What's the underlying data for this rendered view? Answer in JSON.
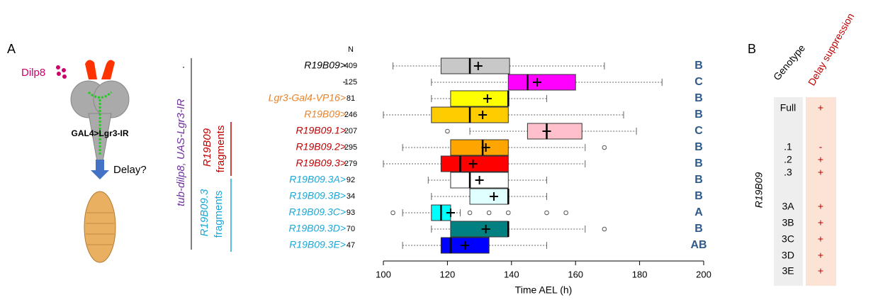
{
  "panel_a": {
    "label": "A",
    "illustration": {
      "ligand": "Dilp8",
      "driver": "GAL4>Lgr3-IR",
      "question": "Delay?"
    },
    "groups": {
      "background": "tub-dilp8, UAS-Lgr3-IR",
      "fragments_line1": "R19B09",
      "fragments_line2": "fragments",
      "sub_line1": "R19B09.3",
      "sub_line2": "fragments"
    }
  },
  "chart_data": {
    "type": "boxplot",
    "xlabel": "Time AEL (h)",
    "n_header": "N",
    "xlim": [
      100,
      200
    ],
    "xticks": [
      100,
      120,
      140,
      160,
      180,
      200
    ],
    "categories": [
      "R19B09>",
      "-",
      "Lgr3-Gal4-VP16>",
      "R19B09>",
      "R19B09.1>",
      "R19B09.2>",
      "R19B09.3>",
      "R19B09.3A>",
      "R19B09.3B>",
      "R19B09.3C>",
      "R19B09.3D>",
      "R19B09.3E>"
    ],
    "label_colors": [
      "#000000",
      "#000000",
      "#e8822a",
      "#e8822a",
      "#c00000",
      "#c00000",
      "#c00000",
      "#1aa7d8",
      "#1aa7d8",
      "#1aa7d8",
      "#1aa7d8",
      "#1aa7d8"
    ],
    "n": [
      409,
      125,
      81,
      246,
      207,
      295,
      279,
      92,
      34,
      93,
      70,
      47
    ],
    "letters": [
      "B",
      "C",
      "B",
      "B",
      "C",
      "B",
      "B",
      "B",
      "B",
      "A",
      "B",
      "AB"
    ],
    "boxes": [
      {
        "color": "#c8c8c8",
        "whislo": 103,
        "q1": 118,
        "med": 127,
        "mean": 129.6,
        "q3": 139.4,
        "whishi": 169,
        "fliers": []
      },
      {
        "color": "#ff00ff",
        "whislo": 115,
        "q1": 139,
        "med": 145,
        "mean": 148,
        "q3": 160,
        "whishi": 187,
        "fliers": []
      },
      {
        "color": "#ffff00",
        "whislo": 115,
        "q1": 121,
        "med": 139,
        "mean": 132.5,
        "q3": 139,
        "whishi": 151,
        "fliers": []
      },
      {
        "color": "#ffcc00",
        "whislo": 100,
        "q1": 115,
        "med": 127,
        "mean": 131,
        "q3": 139,
        "whishi": 175,
        "fliers": []
      },
      {
        "color": "#ffc0cb",
        "whislo": 127,
        "q1": 145,
        "med": 151,
        "mean": 151,
        "q3": 162,
        "whishi": 179,
        "fliers": [
          120
        ]
      },
      {
        "color": "#ffa500",
        "whislo": 106,
        "q1": 121,
        "med": 131,
        "mean": 132,
        "q3": 139,
        "whishi": 163,
        "fliers": [
          169
        ]
      },
      {
        "color": "#ff0000",
        "whislo": 100,
        "q1": 118,
        "med": 124,
        "mean": 128,
        "q3": 139,
        "whishi": 163,
        "fliers": []
      },
      {
        "color": "#ffffff",
        "whislo": 114,
        "q1": 121,
        "med": 127,
        "mean": 130,
        "q3": 139,
        "whishi": 151,
        "fliers": []
      },
      {
        "color": "#e0ffff",
        "whislo": 115,
        "q1": 127,
        "med": 139,
        "mean": 134.5,
        "q3": 139,
        "whishi": 151,
        "fliers": []
      },
      {
        "color": "#00ffff",
        "whislo": 106,
        "q1": 115,
        "med": 118,
        "mean": 121,
        "q3": 121,
        "whishi": 124,
        "fliers": [
          103,
          127,
          133,
          139,
          151,
          157
        ]
      },
      {
        "color": "#008080",
        "whislo": 115,
        "q1": 121,
        "med": 139,
        "mean": 132,
        "q3": 139,
        "whishi": 163,
        "fliers": [
          169
        ]
      },
      {
        "color": "#0000ff",
        "whislo": 106,
        "q1": 118,
        "med": 121,
        "mean": 125.5,
        "q3": 133,
        "whishi": 151,
        "fliers": []
      }
    ]
  },
  "panel_b": {
    "label": "B",
    "header_genotype": "Genotype",
    "header_suppression": "Delay suppression",
    "group_label": "R19B09",
    "rows": [
      [
        "Full",
        "+"
      ],
      [
        ".1",
        "-"
      ],
      [
        ".2",
        "+"
      ],
      [
        ".3",
        "+"
      ],
      [
        "3A",
        "+"
      ],
      [
        "3B",
        "+"
      ],
      [
        "3C",
        "+"
      ],
      [
        "3D",
        "+"
      ],
      [
        "3E",
        "+"
      ]
    ]
  }
}
